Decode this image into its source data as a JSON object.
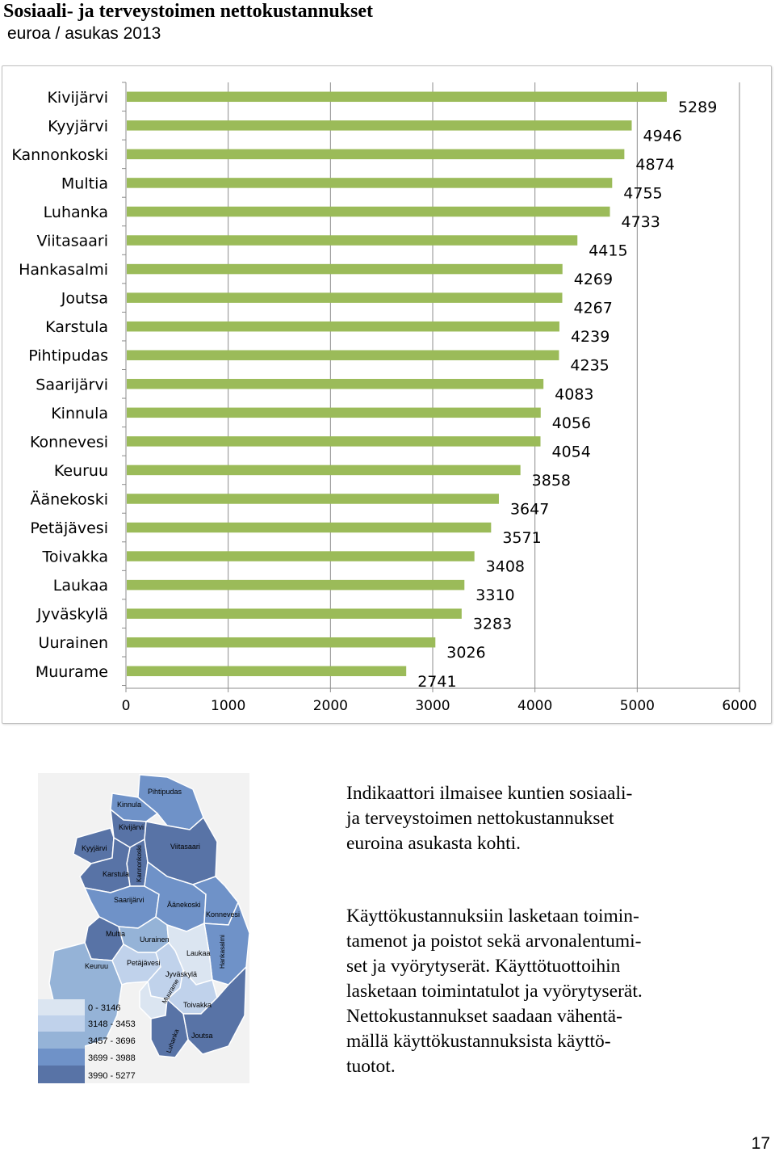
{
  "header": {
    "title": "Sosiaali- ja terveystoimen nettokustannukset",
    "subtitle": "euroa / asukas 2013"
  },
  "chart_data": {
    "type": "bar",
    "orientation": "horizontal",
    "categories": [
      "Kivijärvi",
      "Kyyjärvi",
      "Kannonkoski",
      "Multia",
      "Luhanka",
      "Viitasaari",
      "Hankasalmi",
      "Joutsa",
      "Karstula",
      "Pihtipudas",
      "Saarijärvi",
      "Kinnula",
      "Konnevesi",
      "Keuruu",
      "Äänekoski",
      "Petäjävesi",
      "Toivakka",
      "Laukaa",
      "Jyväskylä",
      "Uurainen",
      "Muurame"
    ],
    "values": [
      5289,
      4946,
      4874,
      4755,
      4733,
      4415,
      4269,
      4267,
      4239,
      4235,
      4083,
      4056,
      4054,
      3858,
      3647,
      3571,
      3408,
      3310,
      3283,
      3026,
      2741
    ],
    "value_labels": [
      "5289",
      "4946",
      "4874",
      "4755",
      "4733",
      "4415",
      "4269",
      "4267",
      "4239",
      "4235",
      "4083",
      "4056",
      "4054",
      "3858",
      "3647",
      "3571",
      "3408",
      "3310",
      "3283",
      "3026",
      "2741"
    ],
    "x_ticks": [
      "0",
      "1000",
      "2000",
      "3000",
      "4000",
      "5000",
      "6000"
    ],
    "xlim": [
      0,
      6000
    ],
    "bar_color": "#9bbb59",
    "grid": "vertical gridlines",
    "data_labels": "outside end"
  },
  "map": {
    "municipalities": [
      "Pihtipudas",
      "Kinnula",
      "Kivijärvi",
      "Kyyjärvi",
      "Kannonkoski",
      "Viitasaari",
      "Karstula",
      "Saarijärvi",
      "Äänekoski",
      "Konnevesi",
      "Multia",
      "Uurainen",
      "Hankasalmi",
      "Laukaa",
      "Keuruu",
      "Petäjävesi",
      "Jyväskylä",
      "Muurame",
      "Toivakka",
      "Joutsa",
      "Luhanka"
    ],
    "legend": [
      {
        "label": "0 - 3146",
        "color": "#dbe5f1"
      },
      {
        "label": "3148 - 3453",
        "color": "#c0d2eb"
      },
      {
        "label": "3457 - 3696",
        "color": "#95b3d7"
      },
      {
        "label": "3699 - 3988",
        "color": "#6f92c8"
      },
      {
        "label": "3990 - 5277",
        "color": "#5873a6"
      }
    ]
  },
  "text": {
    "p1_l1": "Indikaattori ilmaisee kuntien sosiaali-",
    "p1_l2": "ja terveystoimen nettokustannukset",
    "p1_l3": "euroina asukasta kohti.",
    "p2_l1": "Käyttökustannuksiin lasketaan toimin-",
    "p2_l2": "tamenot ja poistot sekä arvonalentumi-",
    "p2_l3": "set ja vyörytyserät. Käyttötuottoihin",
    "p2_l4": "lasketaan toimintatulot ja vyörytyserät.",
    "p2_l5": "Nettokustannukset saadaan vähentä-",
    "p2_l6": "mällä käyttökustannuksista käyttö-",
    "p2_l7": "tuotot."
  },
  "page_number": "17"
}
